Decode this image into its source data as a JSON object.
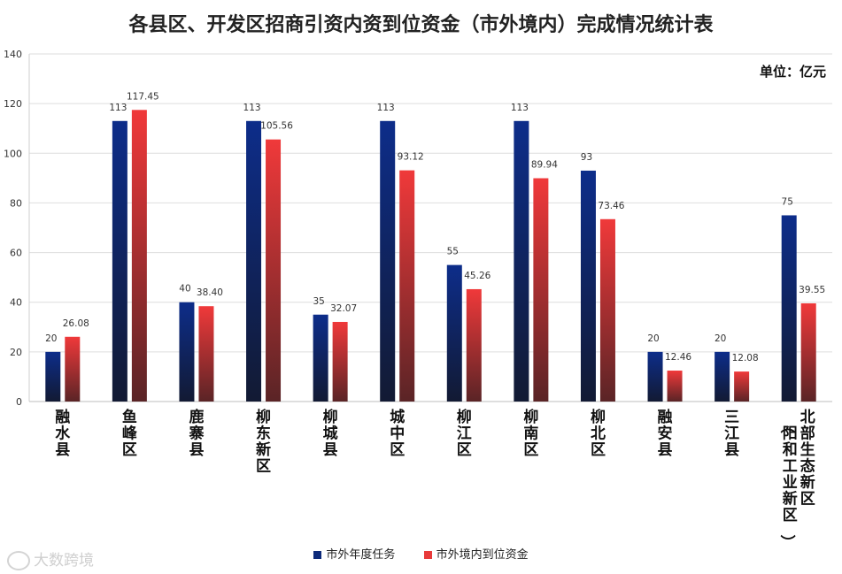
{
  "chart_data": {
    "type": "bar",
    "title": "各县区、开发区招商引资内资到位资金（市外境内）完成情况统计表",
    "unit": "单位：亿元",
    "categories": [
      "融水县",
      "鱼峰区",
      "鹿寨县",
      "柳东新区",
      "柳城县",
      "城中区",
      "柳江区",
      "柳南区",
      "柳北区",
      "融安县",
      "三江县",
      "北部生态新区（阳和工业新区）"
    ],
    "series": [
      {
        "name": "市外年度任务",
        "color": "#0d2a7a",
        "values": [
          20,
          113,
          40,
          113,
          35,
          113,
          55,
          113,
          93,
          20,
          20,
          75
        ],
        "labels": [
          "20",
          "113",
          "40",
          "113",
          "35",
          "113",
          "55",
          "113",
          "93",
          "20",
          "20",
          "75"
        ]
      },
      {
        "name": "市外境内到位资金",
        "color": "#e83a3a",
        "values": [
          26.08,
          117.45,
          38.4,
          105.56,
          32.07,
          93.12,
          45.26,
          89.94,
          73.46,
          12.46,
          12.08,
          39.55
        ],
        "labels": [
          "26.08",
          "117.45",
          "38.40",
          "105.56",
          "32.07",
          "93.12",
          "45.26",
          "89.94",
          "73.46",
          "12.46",
          "12.08",
          "39.55"
        ]
      }
    ],
    "ylim": [
      0,
      140
    ],
    "yticks": [
      0,
      20,
      40,
      60,
      80,
      100,
      120,
      140
    ],
    "grid": true,
    "legend": "bottom"
  },
  "watermark": {
    "text": "大数跨境"
  }
}
